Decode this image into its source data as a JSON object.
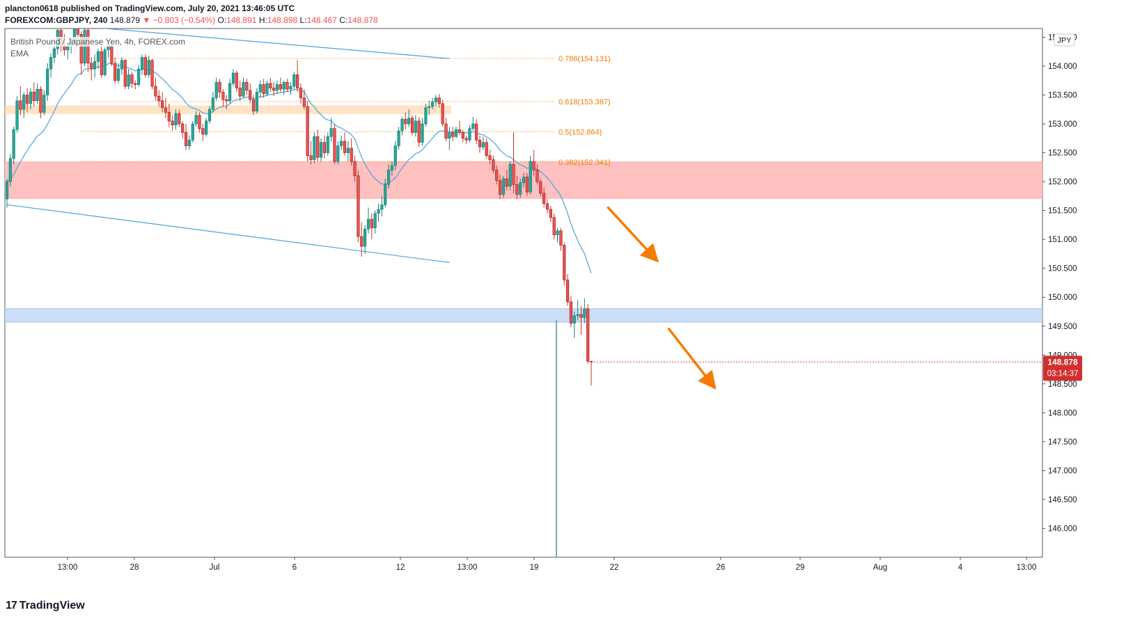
{
  "header": {
    "publisher_line": "plancton0618 published on TradingView.com, July 20, 2021 13:46:05 UTC",
    "symbol": "FOREXCOM:GBPJPY, 240",
    "last": "148.879",
    "change": "▼ −0.803 (−0.54%)",
    "o_label": "O:",
    "o": "148.891",
    "h_label": "H:",
    "h": "148.898",
    "l_label": "L:",
    "l": "148.467",
    "c_label": "C:",
    "c": "148.878"
  },
  "legend": {
    "title": "British Pound / Japanese Yen, 4h, FOREX.com",
    "indicator": "EMA"
  },
  "footer": {
    "brand": "TradingView",
    "mark": "17"
  },
  "colors": {
    "up": "#26a69a",
    "down": "#ef5350",
    "wick_down": "#c0392b",
    "ema": "#4aa3df",
    "fib": "#f57c00",
    "resistance_zone": "#ffbdbd",
    "supply_zone": "#ffd9b0",
    "support_zone": "#c9dcf8",
    "trendline": "#4aa3df",
    "arrow": "#f57c00",
    "price_tag": "#d32f2f"
  },
  "chart_data": {
    "type": "candlestick",
    "currency_badge": "JPY",
    "price_axis": {
      "labels": [
        "154.500",
        "154.000",
        "153.500",
        "153.000",
        "152.500",
        "152.000",
        "151.500",
        "151.000",
        "150.500",
        "150.000",
        "149.500",
        "149.000",
        "148.500",
        "148.000",
        "147.500",
        "147.000",
        "146.500",
        "146.000"
      ],
      "ylim": [
        145.5,
        154.65
      ]
    },
    "time_axis": {
      "labels": [
        "13:00",
        "28",
        "Jul",
        "6",
        "12",
        "13:00",
        "19",
        "22",
        "26",
        "29",
        "Aug",
        "4",
        "13:00"
      ]
    },
    "last_price": {
      "value": 148.878,
      "label": "148.878",
      "countdown": "03:14:37"
    },
    "fib_levels": [
      {
        "label": "0.786(154.131)",
        "value": 154.131
      },
      {
        "label": "0.618(153.387)",
        "value": 153.387
      },
      {
        "label": "0.5(152.864)",
        "value": 152.864
      },
      {
        "label": "0.382(152.341)",
        "value": 152.341
      }
    ],
    "zones": [
      {
        "name": "supply",
        "from": 153.17,
        "to": 153.32
      },
      {
        "name": "resistance",
        "from": 151.7,
        "to": 152.35
      },
      {
        "name": "support",
        "from": 149.57,
        "to": 149.8
      }
    ],
    "trendlines": [
      {
        "from": {
          "bar": 0,
          "price": 154.8
        },
        "to": {
          "bar": 131,
          "price": 154.13
        }
      },
      {
        "from": {
          "bar": 0,
          "price": 151.6
        },
        "to": {
          "bar": 131,
          "price": 150.6
        }
      }
    ],
    "arrows": [
      {
        "from": {
          "bar": 178,
          "price": 151.55
        },
        "to": {
          "bar": 193,
          "price": 150.6
        }
      },
      {
        "from": {
          "bar": 196,
          "price": 149.45
        },
        "to": {
          "bar": 210,
          "price": 148.4
        }
      }
    ],
    "candles": [
      [
        151.7,
        152.05,
        151.55,
        152.0
      ],
      [
        152.0,
        152.48,
        151.92,
        152.4
      ],
      [
        152.4,
        152.95,
        152.3,
        152.9
      ],
      [
        152.9,
        153.48,
        152.85,
        153.4
      ],
      [
        153.4,
        153.65,
        153.15,
        153.25
      ],
      [
        153.25,
        153.55,
        153.1,
        153.5
      ],
      [
        153.5,
        153.62,
        153.2,
        153.35
      ],
      [
        153.35,
        153.62,
        153.25,
        153.55
      ],
      [
        153.55,
        153.72,
        153.3,
        153.4
      ],
      [
        153.4,
        153.7,
        153.35,
        153.6
      ],
      [
        153.6,
        153.65,
        153.1,
        153.2
      ],
      [
        153.2,
        153.58,
        153.15,
        153.5
      ],
      [
        153.5,
        154.05,
        153.4,
        153.95
      ],
      [
        153.95,
        154.22,
        153.8,
        154.15
      ],
      [
        154.15,
        154.35,
        154.05,
        154.3
      ],
      [
        154.3,
        154.72,
        154.2,
        154.62
      ],
      [
        154.62,
        154.7,
        154.25,
        154.35
      ],
      [
        154.35,
        154.55,
        154.18,
        154.28
      ],
      [
        154.28,
        154.4,
        154.12,
        154.35
      ],
      [
        154.35,
        154.48,
        154.22,
        154.42
      ],
      [
        154.42,
        154.8,
        154.4,
        154.72
      ],
      [
        154.72,
        154.85,
        154.45,
        154.55
      ],
      [
        154.55,
        154.6,
        153.85,
        154.05
      ],
      [
        154.05,
        154.7,
        154.0,
        154.62
      ],
      [
        154.62,
        154.75,
        153.9,
        154.05
      ],
      [
        154.05,
        154.15,
        153.75,
        153.95
      ],
      [
        153.95,
        154.2,
        153.8,
        154.08
      ],
      [
        154.08,
        154.3,
        153.95,
        154.25
      ],
      [
        154.25,
        154.35,
        153.8,
        153.85
      ],
      [
        153.85,
        154.32,
        153.82,
        154.28
      ],
      [
        154.28,
        154.45,
        154.15,
        154.35
      ],
      [
        154.35,
        154.45,
        154.0,
        154.05
      ],
      [
        154.05,
        154.15,
        153.7,
        153.75
      ],
      [
        153.75,
        154.05,
        153.7,
        153.95
      ],
      [
        153.95,
        154.15,
        153.85,
        154.1
      ],
      [
        154.1,
        154.12,
        153.6,
        153.65
      ],
      [
        153.65,
        153.95,
        153.6,
        153.85
      ],
      [
        153.85,
        153.9,
        153.62,
        153.7
      ],
      [
        153.7,
        153.75,
        153.6,
        153.68
      ],
      [
        153.68,
        154.02,
        153.65,
        153.95
      ],
      [
        153.95,
        154.2,
        153.85,
        154.15
      ],
      [
        154.15,
        154.2,
        153.8,
        153.85
      ],
      [
        153.85,
        154.18,
        153.8,
        154.1
      ],
      [
        154.1,
        154.12,
        153.6,
        153.65
      ],
      [
        153.65,
        153.8,
        153.4,
        153.48
      ],
      [
        153.48,
        153.58,
        153.3,
        153.4
      ],
      [
        153.4,
        153.55,
        153.2,
        153.28
      ],
      [
        153.28,
        153.45,
        153.1,
        153.2
      ],
      [
        153.2,
        153.35,
        152.95,
        153.05
      ],
      [
        153.05,
        153.15,
        152.88,
        152.98
      ],
      [
        152.98,
        153.25,
        152.9,
        153.18
      ],
      [
        153.18,
        153.25,
        152.95,
        153.0
      ],
      [
        153.0,
        153.05,
        152.75,
        152.85
      ],
      [
        152.85,
        153.0,
        152.55,
        152.62
      ],
      [
        152.62,
        152.8,
        152.55,
        152.72
      ],
      [
        152.72,
        153.05,
        152.68,
        153.0
      ],
      [
        153.0,
        153.22,
        152.95,
        153.15
      ],
      [
        153.15,
        153.2,
        152.85,
        152.92
      ],
      [
        152.92,
        153.0,
        152.7,
        152.82
      ],
      [
        152.82,
        153.1,
        152.78,
        153.05
      ],
      [
        153.05,
        153.3,
        153.0,
        153.25
      ],
      [
        153.25,
        153.55,
        153.2,
        153.45
      ],
      [
        153.45,
        153.8,
        153.4,
        153.72
      ],
      [
        153.72,
        153.78,
        153.45,
        153.55
      ],
      [
        153.55,
        153.6,
        153.3,
        153.42
      ],
      [
        153.42,
        153.5,
        153.25,
        153.4
      ],
      [
        153.4,
        153.78,
        153.35,
        153.7
      ],
      [
        153.7,
        153.95,
        153.65,
        153.88
      ],
      [
        153.88,
        153.92,
        153.55,
        153.62
      ],
      [
        153.62,
        153.75,
        153.4,
        153.48
      ],
      [
        153.48,
        153.8,
        153.45,
        153.72
      ],
      [
        153.72,
        153.78,
        153.5,
        153.58
      ],
      [
        153.58,
        153.7,
        153.35,
        153.42
      ],
      [
        153.42,
        153.5,
        153.15,
        153.22
      ],
      [
        153.22,
        153.62,
        153.18,
        153.55
      ],
      [
        153.55,
        153.75,
        153.45,
        153.68
      ],
      [
        153.68,
        153.78,
        153.45,
        153.52
      ],
      [
        153.52,
        153.75,
        153.48,
        153.7
      ],
      [
        153.7,
        153.8,
        153.55,
        153.62
      ],
      [
        153.62,
        153.72,
        153.48,
        153.58
      ],
      [
        153.58,
        153.75,
        153.52,
        153.68
      ],
      [
        153.68,
        153.8,
        153.55,
        153.6
      ],
      [
        153.6,
        153.75,
        153.5,
        153.72
      ],
      [
        153.72,
        153.78,
        153.55,
        153.6
      ],
      [
        153.6,
        153.72,
        153.5,
        153.65
      ],
      [
        153.65,
        153.9,
        153.6,
        153.85
      ],
      [
        153.85,
        154.1,
        153.55,
        153.62
      ],
      [
        153.62,
        153.7,
        153.35,
        153.45
      ],
      [
        153.45,
        153.6,
        153.25,
        153.3
      ],
      [
        153.3,
        153.4,
        152.35,
        152.45
      ],
      [
        152.45,
        152.7,
        152.3,
        152.38
      ],
      [
        152.38,
        152.85,
        152.32,
        152.78
      ],
      [
        152.78,
        152.9,
        152.35,
        152.42
      ],
      [
        152.42,
        152.75,
        152.35,
        152.68
      ],
      [
        152.68,
        152.8,
        152.4,
        152.5
      ],
      [
        152.5,
        152.85,
        152.45,
        152.78
      ],
      [
        152.78,
        153.1,
        152.7,
        152.92
      ],
      [
        152.92,
        153.0,
        152.3,
        152.35
      ],
      [
        152.35,
        152.7,
        152.3,
        152.62
      ],
      [
        152.62,
        152.8,
        152.55,
        152.7
      ],
      [
        152.7,
        152.85,
        152.45,
        152.5
      ],
      [
        152.5,
        152.7,
        152.35,
        152.58
      ],
      [
        152.58,
        152.75,
        152.28,
        152.35
      ],
      [
        152.35,
        152.45,
        152.0,
        152.1
      ],
      [
        152.1,
        152.2,
        150.95,
        151.05
      ],
      [
        151.05,
        151.3,
        150.7,
        150.88
      ],
      [
        150.88,
        151.25,
        150.75,
        151.18
      ],
      [
        151.18,
        151.55,
        151.1,
        151.35
      ],
      [
        151.35,
        151.45,
        151.0,
        151.2
      ],
      [
        151.2,
        151.5,
        151.1,
        151.45
      ],
      [
        151.45,
        151.62,
        151.3,
        151.52
      ],
      [
        151.52,
        151.75,
        151.4,
        151.6
      ],
      [
        151.6,
        152.05,
        151.55,
        151.95
      ],
      [
        151.95,
        152.3,
        151.88,
        152.2
      ],
      [
        152.2,
        152.35,
        152.1,
        152.28
      ],
      [
        152.28,
        152.7,
        152.2,
        152.62
      ],
      [
        152.62,
        152.95,
        152.55,
        152.88
      ],
      [
        152.88,
        153.12,
        152.8,
        153.08
      ],
      [
        153.08,
        153.2,
        152.9,
        153.0
      ],
      [
        153.0,
        153.25,
        152.95,
        153.1
      ],
      [
        153.1,
        153.15,
        152.8,
        152.85
      ],
      [
        152.85,
        153.15,
        152.78,
        153.05
      ],
      [
        153.05,
        153.12,
        152.6,
        152.68
      ],
      [
        152.68,
        153.1,
        152.62,
        153.0
      ],
      [
        153.0,
        153.35,
        152.95,
        153.28
      ],
      [
        153.28,
        153.4,
        153.15,
        153.3
      ],
      [
        153.3,
        153.45,
        153.25,
        153.38
      ],
      [
        153.38,
        153.5,
        153.3,
        153.45
      ],
      [
        153.45,
        153.52,
        153.28,
        153.35
      ],
      [
        153.35,
        153.42,
        152.95,
        153.0
      ],
      [
        153.0,
        153.1,
        152.7,
        152.75
      ],
      [
        152.75,
        152.95,
        152.55,
        152.85
      ],
      [
        152.85,
        152.95,
        152.7,
        152.78
      ],
      [
        152.78,
        152.95,
        152.75,
        152.9
      ],
      [
        152.9,
        153.05,
        152.8,
        152.85
      ],
      [
        152.85,
        152.9,
        152.68,
        152.75
      ],
      [
        152.75,
        152.8,
        152.65,
        152.72
      ],
      [
        152.72,
        152.98,
        152.68,
        152.92
      ],
      [
        152.92,
        153.12,
        152.88,
        153.0
      ],
      [
        153.0,
        153.08,
        152.65,
        152.72
      ],
      [
        152.72,
        152.8,
        152.5,
        152.6
      ],
      [
        152.6,
        152.78,
        152.55,
        152.68
      ],
      [
        152.68,
        152.75,
        152.4,
        152.45
      ],
      [
        152.45,
        152.55,
        152.3,
        152.38
      ],
      [
        152.38,
        152.45,
        152.15,
        152.2
      ],
      [
        152.2,
        152.28,
        151.95,
        152.02
      ],
      [
        152.02,
        152.12,
        151.7,
        151.78
      ],
      [
        151.78,
        152.1,
        151.72,
        152.05
      ],
      [
        152.05,
        152.2,
        151.85,
        151.92
      ],
      [
        151.92,
        152.35,
        151.85,
        152.3
      ],
      [
        152.3,
        152.85,
        151.8,
        151.95
      ],
      [
        151.95,
        152.1,
        151.7,
        151.78
      ],
      [
        151.78,
        152.05,
        151.72,
        151.98
      ],
      [
        151.98,
        152.15,
        151.9,
        152.08
      ],
      [
        152.08,
        152.15,
        151.75,
        151.82
      ],
      [
        151.82,
        152.45,
        151.78,
        152.35
      ],
      [
        152.35,
        152.55,
        152.1,
        152.2
      ],
      [
        152.2,
        152.3,
        151.95,
        152.0
      ],
      [
        152.0,
        152.05,
        151.75,
        151.8
      ],
      [
        151.8,
        151.9,
        151.55,
        151.62
      ],
      [
        151.62,
        151.7,
        151.45,
        151.52
      ],
      [
        151.52,
        151.58,
        151.3,
        151.38
      ],
      [
        151.38,
        151.45,
        151.0,
        151.08
      ],
      [
        151.08,
        151.2,
        150.95,
        151.15
      ],
      [
        151.15,
        151.2,
        150.8,
        150.9
      ],
      [
        150.9,
        150.95,
        150.2,
        150.3
      ],
      [
        150.3,
        150.4,
        149.85,
        149.92
      ],
      [
        149.92,
        150.02,
        149.48,
        149.55
      ],
      [
        149.55,
        149.75,
        149.3,
        149.68
      ],
      [
        149.68,
        149.95,
        149.6,
        149.7
      ],
      [
        149.7,
        149.85,
        149.35,
        149.65
      ],
      [
        149.65,
        149.98,
        149.55,
        149.8
      ],
      [
        149.8,
        149.88,
        148.85,
        148.89
      ],
      [
        148.89,
        148.9,
        148.47,
        148.88
      ]
    ]
  }
}
